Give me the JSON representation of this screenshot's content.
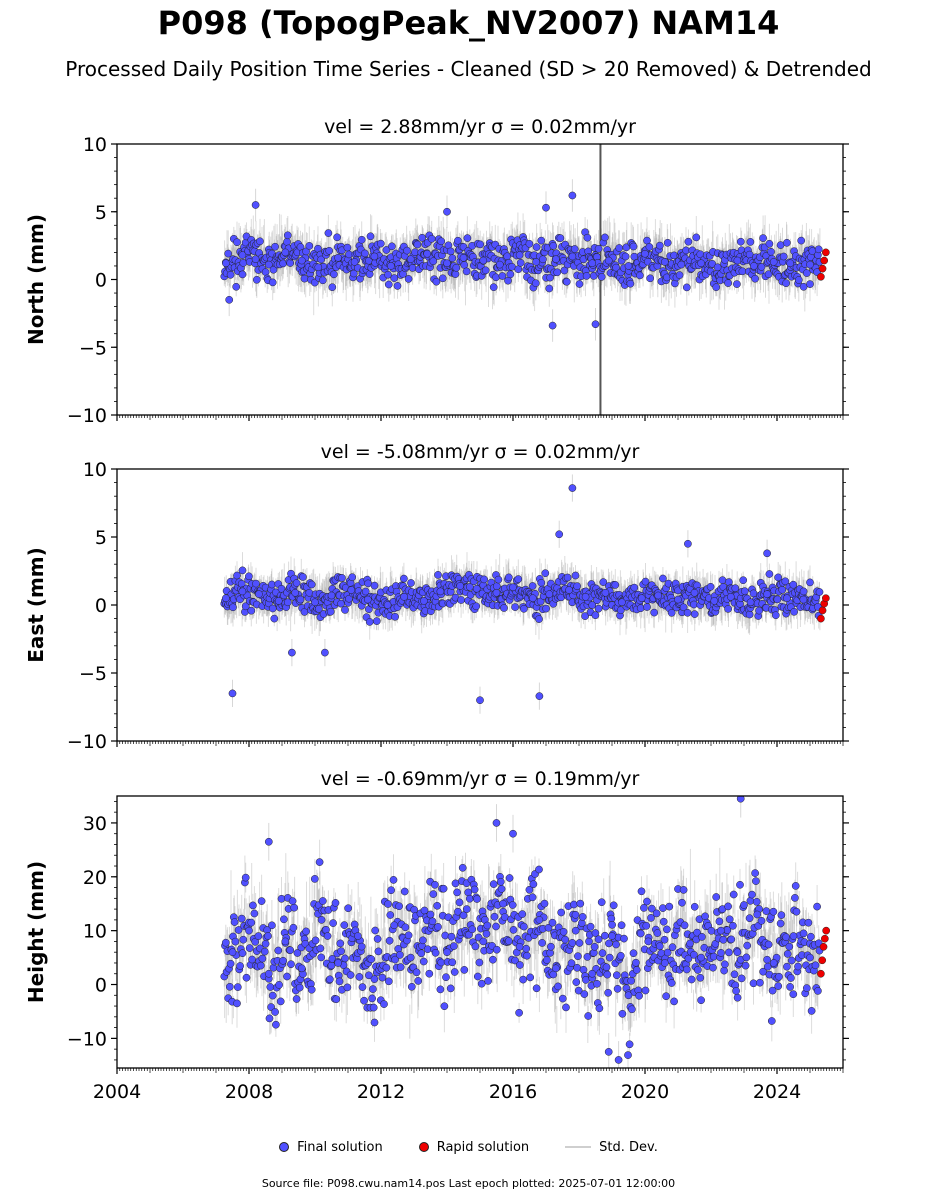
{
  "figure": {
    "title": "P098 (TopogPeak_NV2007) NAM14",
    "subtitle": "Processed Daily Position Time Series - Cleaned (SD > 20 Removed) & Detrended",
    "legend": {
      "final_label": "Final solution",
      "rapid_label": "Rapid solution",
      "std_label": "Std. Dev."
    },
    "footer": "Source file: P098.cwu.nam14.pos  Last epoch plotted: 2025-07-01 12:00:00",
    "colors": {
      "final": "#5050ff",
      "rapid": "#ee0000",
      "std": "#9a9a9a",
      "edge": "#222222"
    }
  },
  "chart_data": [
    {
      "type": "scatter",
      "title": "vel = 2.88mm/yr   σ = 0.02mm/yr",
      "ylabel": "North (mm)",
      "xlim": [
        2004,
        2026
      ],
      "ylim": [
        -10,
        10
      ],
      "yticks": [
        -10,
        -5,
        0,
        5,
        10
      ],
      "yticklabels": [
        "−10",
        "−5",
        "0",
        "5",
        "10"
      ],
      "xticks": [
        2004,
        2008,
        2012,
        2016,
        2020,
        2024
      ],
      "xticklabels": [],
      "data_range": [
        2007.25,
        2025.5
      ],
      "rapid_start": 2025.3,
      "series": [
        {
          "name": "Final solution",
          "x": [
            2007.3,
            2007.8,
            2008.2,
            2008.6,
            2009.1,
            2009.6,
            2010.1,
            2010.7,
            2011.2,
            2011.8,
            2012.3,
            2012.9,
            2013.4,
            2014.0,
            2014.5,
            2015.1,
            2015.6,
            2016.2,
            2016.7,
            2017.3,
            2017.8,
            2018.4,
            2018.9,
            2019.5,
            2020.0,
            2020.6,
            2021.1,
            2021.7,
            2022.2,
            2022.8,
            2023.3,
            2023.9,
            2024.4,
            2025.0
          ],
          "y": [
            1.2,
            1.8,
            1.5,
            1.1,
            2.0,
            1.4,
            0.9,
            1.6,
            1.3,
            1.7,
            1.0,
            1.5,
            1.9,
            1.2,
            1.6,
            1.4,
            1.1,
            1.8,
            1.3,
            1.5,
            1.7,
            1.2,
            1.4,
            1.0,
            1.9,
            1.3,
            1.1,
            1.2,
            0.9,
            1.4,
            1.0,
            1.3,
            1.2,
            1.1
          ]
        },
        {
          "name": "Rapid solution",
          "x": [
            2025.33,
            2025.38,
            2025.43,
            2025.48
          ],
          "y": [
            0.2,
            0.8,
            1.4,
            2.0
          ]
        }
      ],
      "outliers": {
        "x": [
          2008.2,
          2014.0,
          2017.0,
          2017.8,
          2018.5,
          2017.2,
          2007.4
        ],
        "y": [
          5.5,
          5.0,
          5.3,
          6.2,
          -3.3,
          -3.4,
          -1.5
        ]
      },
      "vline": 2018.65,
      "amp": 1.1,
      "center": 1.3,
      "std_half": 1.2,
      "seed": 11
    },
    {
      "type": "scatter",
      "title": "vel = -5.08mm/yr   σ = 0.02mm/yr",
      "ylabel": "East (mm)",
      "xlim": [
        2004,
        2026
      ],
      "ylim": [
        -10,
        10
      ],
      "yticks": [
        -10,
        -5,
        0,
        5,
        10
      ],
      "yticklabels": [
        "−10",
        "−5",
        "0",
        "5",
        "10"
      ],
      "xticks": [
        2004,
        2008,
        2012,
        2016,
        2020,
        2024
      ],
      "xticklabels": [],
      "data_range": [
        2007.25,
        2025.5
      ],
      "rapid_start": 2025.3,
      "series": [
        {
          "name": "Final solution",
          "x": [
            2007.3,
            2007.8,
            2008.3,
            2008.9,
            2009.4,
            2010.0,
            2010.5,
            2011.1,
            2011.6,
            2012.2,
            2012.7,
            2013.3,
            2013.8,
            2014.4,
            2014.9,
            2015.5,
            2016.0,
            2016.6,
            2017.1,
            2017.7,
            2018.2,
            2018.8,
            2019.3,
            2019.9,
            2020.4,
            2021.0,
            2021.5,
            2022.1,
            2022.6,
            2023.2,
            2023.7,
            2024.3,
            2024.8
          ],
          "y": [
            0.5,
            1.0,
            0.8,
            0.3,
            0.9,
            0.2,
            0.7,
            1.1,
            0.4,
            0.0,
            0.6,
            0.3,
            1.0,
            1.4,
            1.2,
            0.9,
            1.3,
            0.5,
            0.8,
            1.1,
            0.6,
            0.9,
            0.2,
            0.5,
            0.7,
            0.4,
            0.9,
            0.3,
            0.6,
            0.2,
            0.8,
            0.5,
            0.4
          ]
        },
        {
          "name": "Rapid solution",
          "x": [
            2025.33,
            2025.38,
            2025.43,
            2025.48
          ],
          "y": [
            -1.0,
            -0.4,
            0.1,
            0.5
          ]
        }
      ],
      "outliers": {
        "x": [
          2007.5,
          2015.0,
          2016.8,
          2017.8,
          2017.4,
          2009.3,
          2010.3,
          2021.3,
          2023.7
        ],
        "y": [
          -6.5,
          -7.0,
          -6.7,
          8.6,
          5.2,
          -3.5,
          -3.5,
          4.5,
          3.8
        ]
      },
      "vline": null,
      "amp": 0.9,
      "center": 0.6,
      "std_half": 1.0,
      "seed": 23
    },
    {
      "type": "scatter",
      "title": "vel = -0.69mm/yr   σ = 0.19mm/yr",
      "ylabel": "Height (mm)",
      "xlim": [
        2004,
        2026
      ],
      "ylim": [
        -15.5,
        35
      ],
      "yticks": [
        -10,
        0,
        10,
        20,
        30
      ],
      "yticklabels": [
        "−10",
        "0",
        "10",
        "20",
        "30"
      ],
      "xticks": [
        2004,
        2008,
        2012,
        2016,
        2020,
        2024
      ],
      "xticklabels": [
        "2004",
        "2008",
        "2012",
        "2016",
        "2020",
        "2024"
      ],
      "data_range": [
        2007.25,
        2025.5
      ],
      "rapid_start": 2025.3,
      "series": [
        {
          "name": "Final solution",
          "x": [
            2007.5,
            2008.0,
            2008.6,
            2009.1,
            2009.6,
            2010.2,
            2010.7,
            2011.3,
            2011.8,
            2012.4,
            2012.9,
            2013.5,
            2014.0,
            2014.6,
            2015.1,
            2015.7,
            2016.2,
            2016.8,
            2017.3,
            2017.9,
            2018.4,
            2019.0,
            2019.5,
            2020.1,
            2020.6,
            2021.2,
            2021.7,
            2022.3,
            2022.8,
            2023.4,
            2023.9,
            2024.5,
            2025.0
          ],
          "y": [
            6.0,
            10.0,
            2.0,
            8.0,
            3.0,
            12.0,
            4.0,
            9.0,
            1.0,
            11.0,
            5.0,
            13.0,
            6.0,
            14.0,
            8.0,
            15.0,
            7.0,
            12.0,
            3.0,
            10.0,
            2.0,
            9.0,
            -2.0,
            8.0,
            4.0,
            11.0,
            5.0,
            10.0,
            6.0,
            13.0,
            4.0,
            9.0,
            5.0
          ]
        },
        {
          "name": "Rapid solution",
          "x": [
            2025.33,
            2025.37,
            2025.41,
            2025.45,
            2025.49
          ],
          "y": [
            2.0,
            4.5,
            7.0,
            8.5,
            10.0
          ]
        }
      ],
      "outliers": {
        "x": [
          2022.9,
          2019.2,
          2018.9,
          2008.6,
          2016.0,
          2015.5
        ],
        "y": [
          34.5,
          -14.0,
          -12.5,
          26.5,
          28.0,
          30.0
        ]
      },
      "vline": null,
      "amp": 7.0,
      "center": 5.5,
      "std_half": 3.5,
      "seed": 37
    }
  ]
}
